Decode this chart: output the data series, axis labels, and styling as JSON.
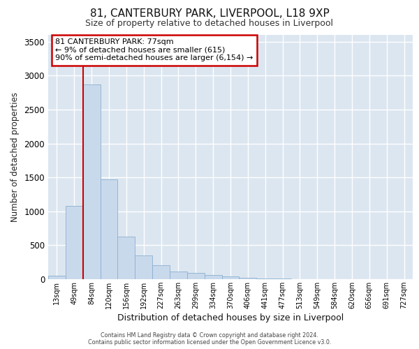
{
  "title1": "81, CANTERBURY PARK, LIVERPOOL, L18 9XP",
  "title2": "Size of property relative to detached houses in Liverpool",
  "xlabel": "Distribution of detached houses by size in Liverpool",
  "ylabel": "Number of detached properties",
  "bar_labels": [
    "13sqm",
    "49sqm",
    "84sqm",
    "120sqm",
    "156sqm",
    "192sqm",
    "227sqm",
    "263sqm",
    "299sqm",
    "334sqm",
    "370sqm",
    "406sqm",
    "441sqm",
    "477sqm",
    "513sqm",
    "549sqm",
    "584sqm",
    "620sqm",
    "656sqm",
    "691sqm",
    "727sqm"
  ],
  "bar_values": [
    50,
    1080,
    2870,
    1470,
    625,
    345,
    205,
    110,
    90,
    60,
    40,
    25,
    15,
    8,
    5,
    3,
    2,
    1,
    1,
    0,
    0
  ],
  "bar_color": "#c9d9ec",
  "bar_edge_color": "#8ab0d0",
  "vline_x": 2,
  "vline_color": "#cc0000",
  "annotation_line1": "81 CANTERBURY PARK: 77sqm",
  "annotation_line2": "← 9% of detached houses are smaller (615)",
  "annotation_line3": "90% of semi-detached houses are larger (6,154) →",
  "annotation_box_facecolor": "#ffffff",
  "annotation_box_edgecolor": "#cc0000",
  "ylim": [
    0,
    3600
  ],
  "yticks": [
    0,
    500,
    1000,
    1500,
    2000,
    2500,
    3000,
    3500
  ],
  "background_color": "#dce6f0",
  "grid_color": "#ffffff",
  "footer_line1": "Contains HM Land Registry data © Crown copyright and database right 2024.",
  "footer_line2": "Contains public sector information licensed under the Open Government Licence v3.0."
}
